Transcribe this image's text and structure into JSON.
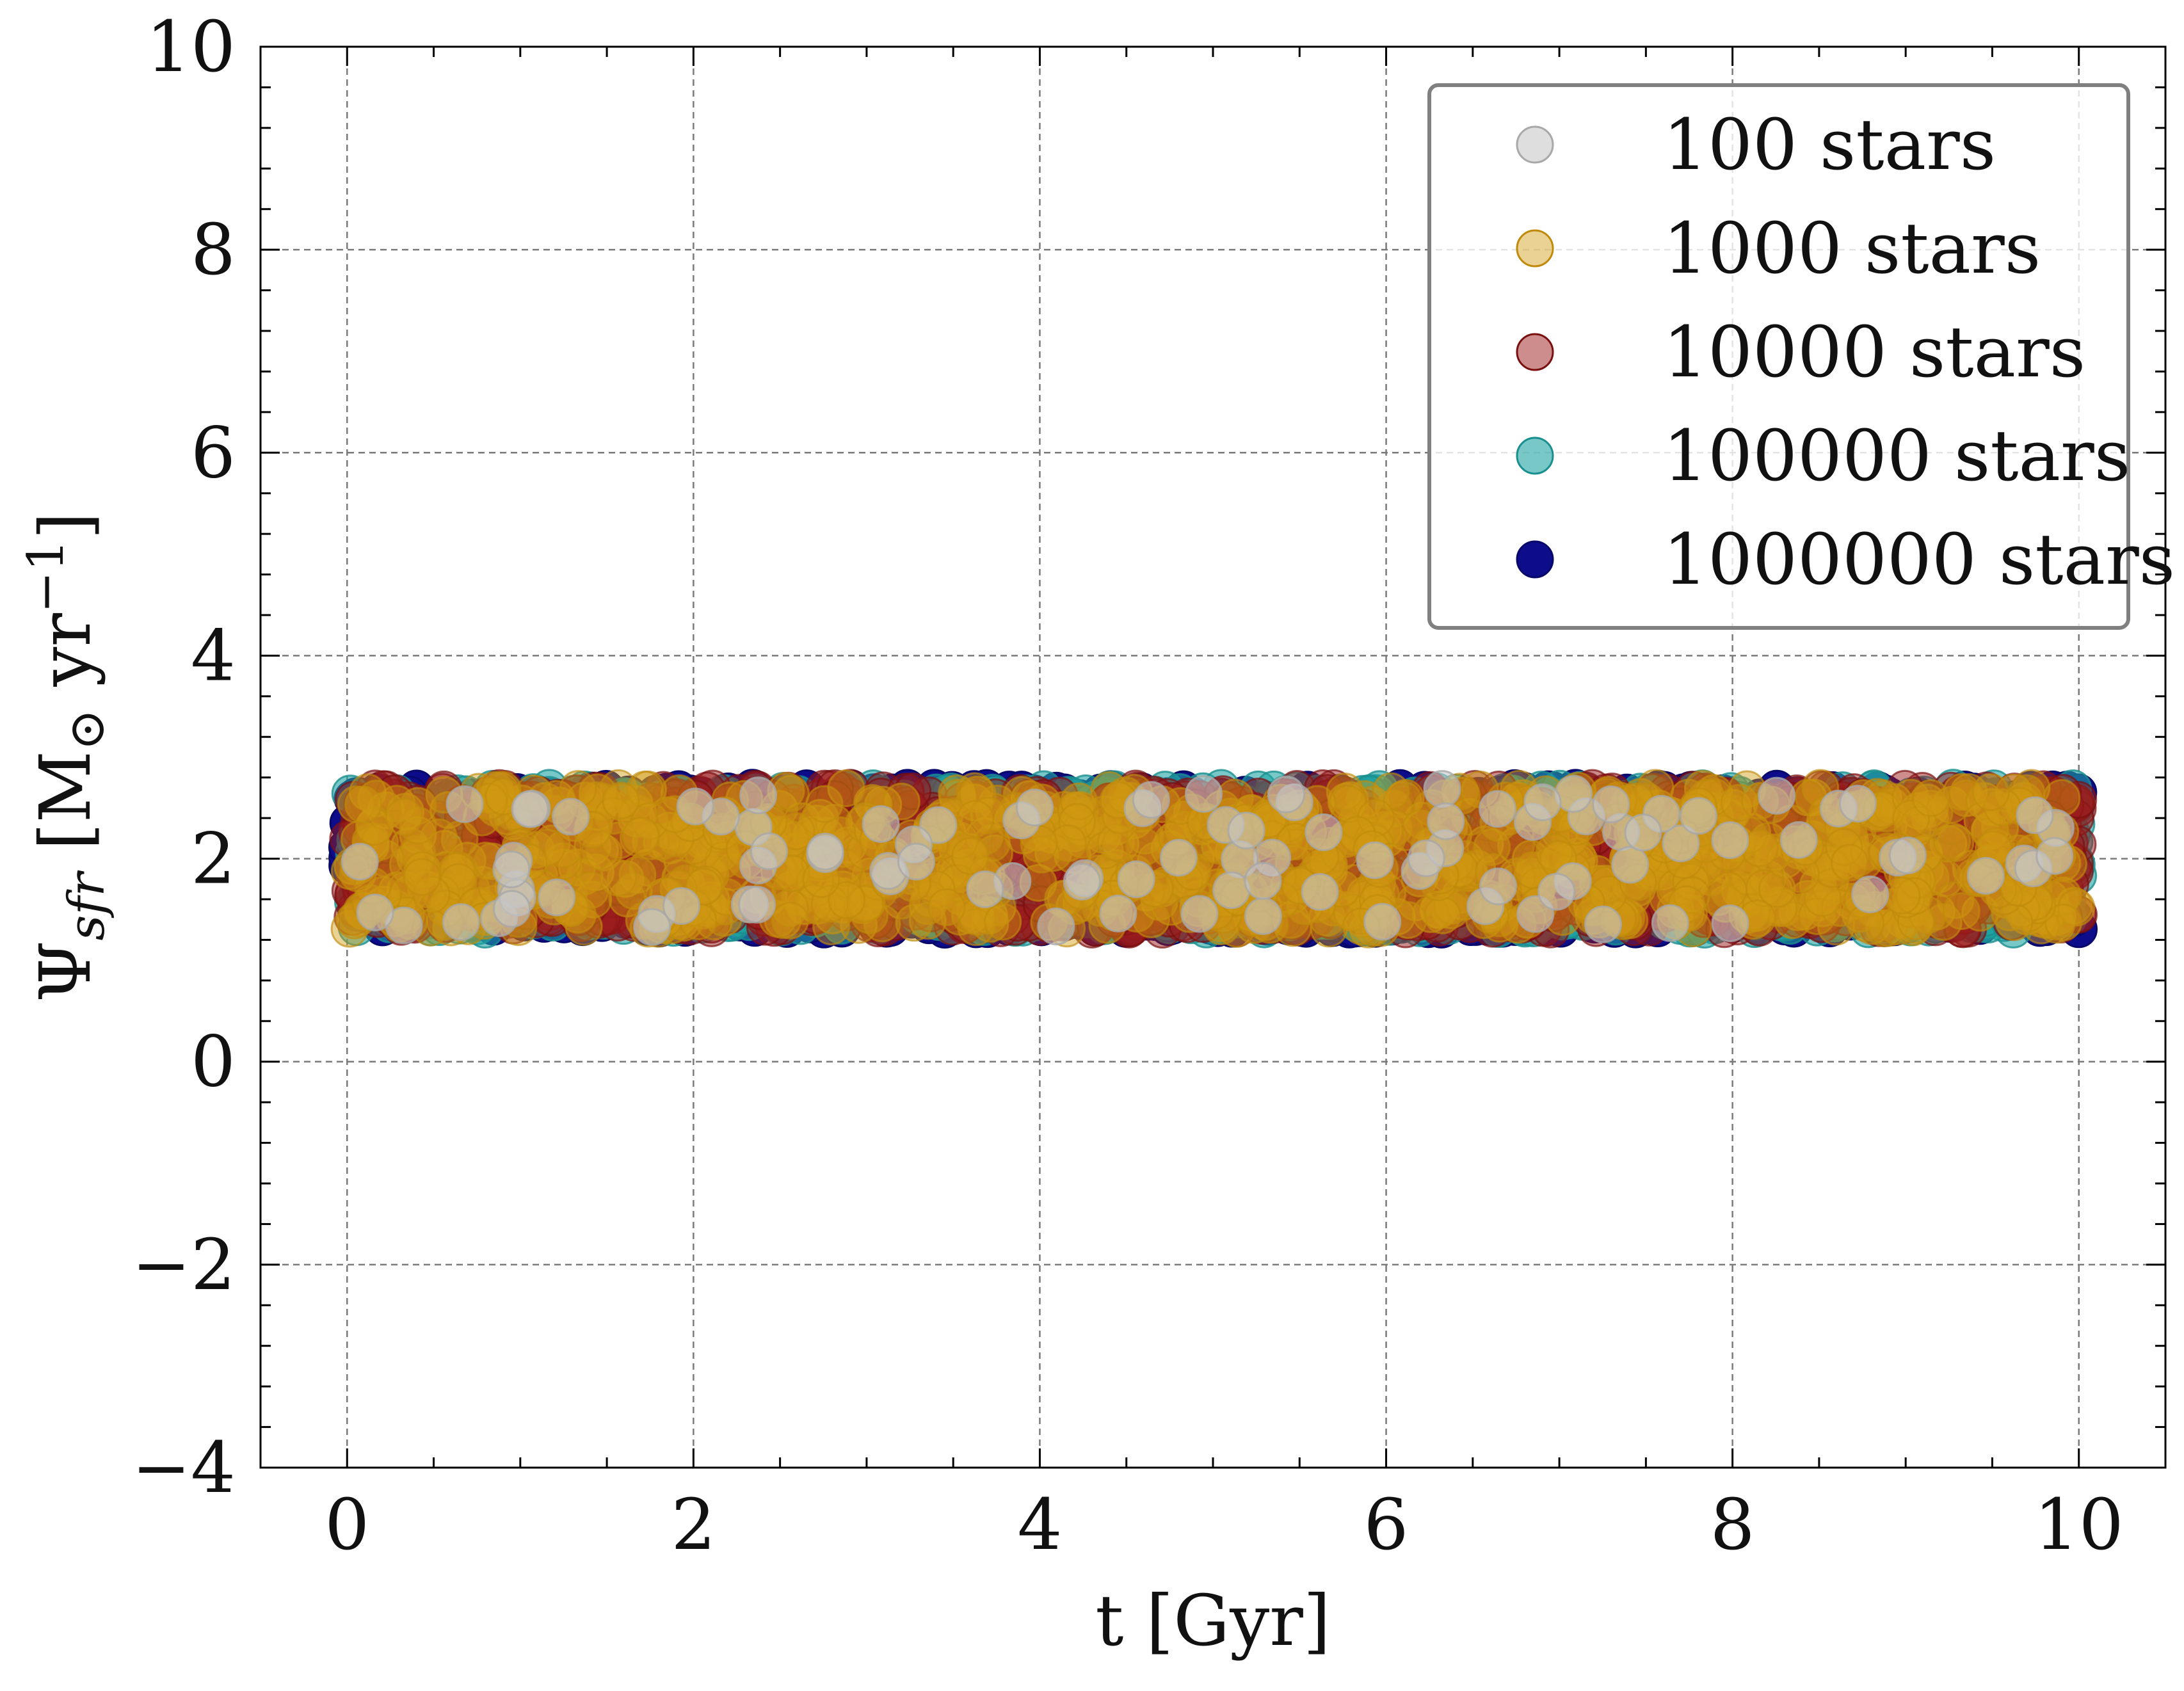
{
  "chart_data": {
    "type": "scatter",
    "xlabel": "t [Gyr]",
    "ylabel": "Ψ_sfr [M⊙ yr⁻¹]",
    "ylabel_parts": {
      "psi": "Ψ",
      "sub": "sfr",
      "units_open": " [M",
      "sun": "⊙",
      "units_mid": " yr",
      "exp": "−1",
      "units_close": "]"
    },
    "xlim": [
      -0.5,
      10.5
    ],
    "ylim": [
      -4,
      10
    ],
    "x_ticks": [
      0,
      2,
      4,
      6,
      8,
      10
    ],
    "x_tick_labels": [
      "0",
      "2",
      "4",
      "6",
      "8",
      "10"
    ],
    "y_ticks": [
      -4,
      -2,
      0,
      2,
      4,
      6,
      8,
      10
    ],
    "y_tick_labels": [
      "−4",
      "−2",
      "0",
      "2",
      "4",
      "6",
      "8",
      "10"
    ],
    "grid": true,
    "legend_position": "top-right",
    "distribution": "uniform",
    "x_range": [
      0,
      10
    ],
    "y_range": [
      1.3,
      2.7
    ],
    "series": [
      {
        "name": "100 stars",
        "label": "100 stars",
        "n": 100,
        "color": "#c8c8c8",
        "edge_color": "#a8a8a8",
        "alpha": 0.6,
        "rendered_points": 100
      },
      {
        "name": "1000 stars",
        "label": "1000 stars",
        "n": 1000,
        "color": "#d09a12",
        "edge_color": "#c08a0a",
        "alpha": 0.45,
        "rendered_points": 1000
      },
      {
        "name": "10000 stars",
        "label": "10000 stars",
        "n": 10000,
        "color": "#9b1c1c",
        "edge_color": "#7a0f0f",
        "alpha": 0.5,
        "rendered_points": 1500
      },
      {
        "name": "100000 stars",
        "label": "100000 stars",
        "n": 100000,
        "color": "#1fa3a3",
        "edge_color": "#1a8f8f",
        "alpha": 0.6,
        "rendered_points": 1500
      },
      {
        "name": "1000000 stars",
        "label": "1000000 stars",
        "n": 1000000,
        "color": "#0d0d8c",
        "edge_color": "#08086a",
        "alpha": 1.0,
        "rendered_points": 1500
      }
    ]
  }
}
